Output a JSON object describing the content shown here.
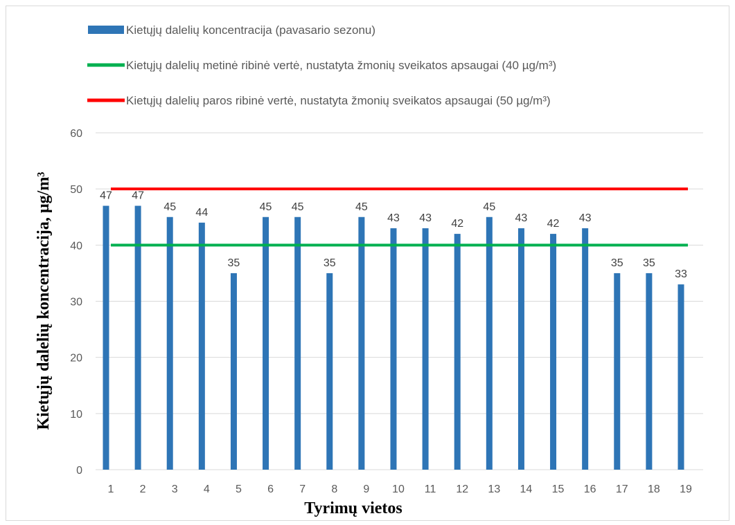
{
  "chart_data": {
    "type": "bar",
    "categories": [
      "1",
      "2",
      "3",
      "4",
      "5",
      "6",
      "7",
      "8",
      "9",
      "10",
      "11",
      "12",
      "13",
      "14",
      "15",
      "16",
      "17",
      "18",
      "19"
    ],
    "values": [
      47,
      47,
      45,
      44,
      35,
      45,
      45,
      35,
      45,
      43,
      43,
      42,
      45,
      43,
      42,
      43,
      35,
      35,
      33
    ],
    "series": [
      {
        "name": "Kietųjų dalelių koncentracija (pavasario sezonu)",
        "values": [
          47,
          47,
          45,
          44,
          35,
          45,
          45,
          35,
          45,
          43,
          43,
          42,
          45,
          43,
          42,
          43,
          35,
          35,
          33
        ],
        "color": "#2e75b6"
      }
    ],
    "reference_lines": [
      {
        "name": "Kietųjų dalelių metinė ribinė vertė, nustatyta žmonių sveikatos apsaugai (40 µg/m³)",
        "value": 40,
        "color": "#00b050"
      },
      {
        "name": "Kietųjų dalelių paros ribinė vertė, nustatyta žmonių sveikatos apsaugai (50 µg/m³)",
        "value": 50,
        "color": "#ff0000"
      }
    ],
    "xlabel": "Tyrimų vietos",
    "ylabel": "Kietųjų dalelių koncentracija, µg/m³",
    "ylim": [
      0,
      60
    ],
    "yticks": [
      0,
      10,
      20,
      30,
      40,
      50,
      60
    ],
    "grid": true,
    "legend_position": "top-left"
  }
}
